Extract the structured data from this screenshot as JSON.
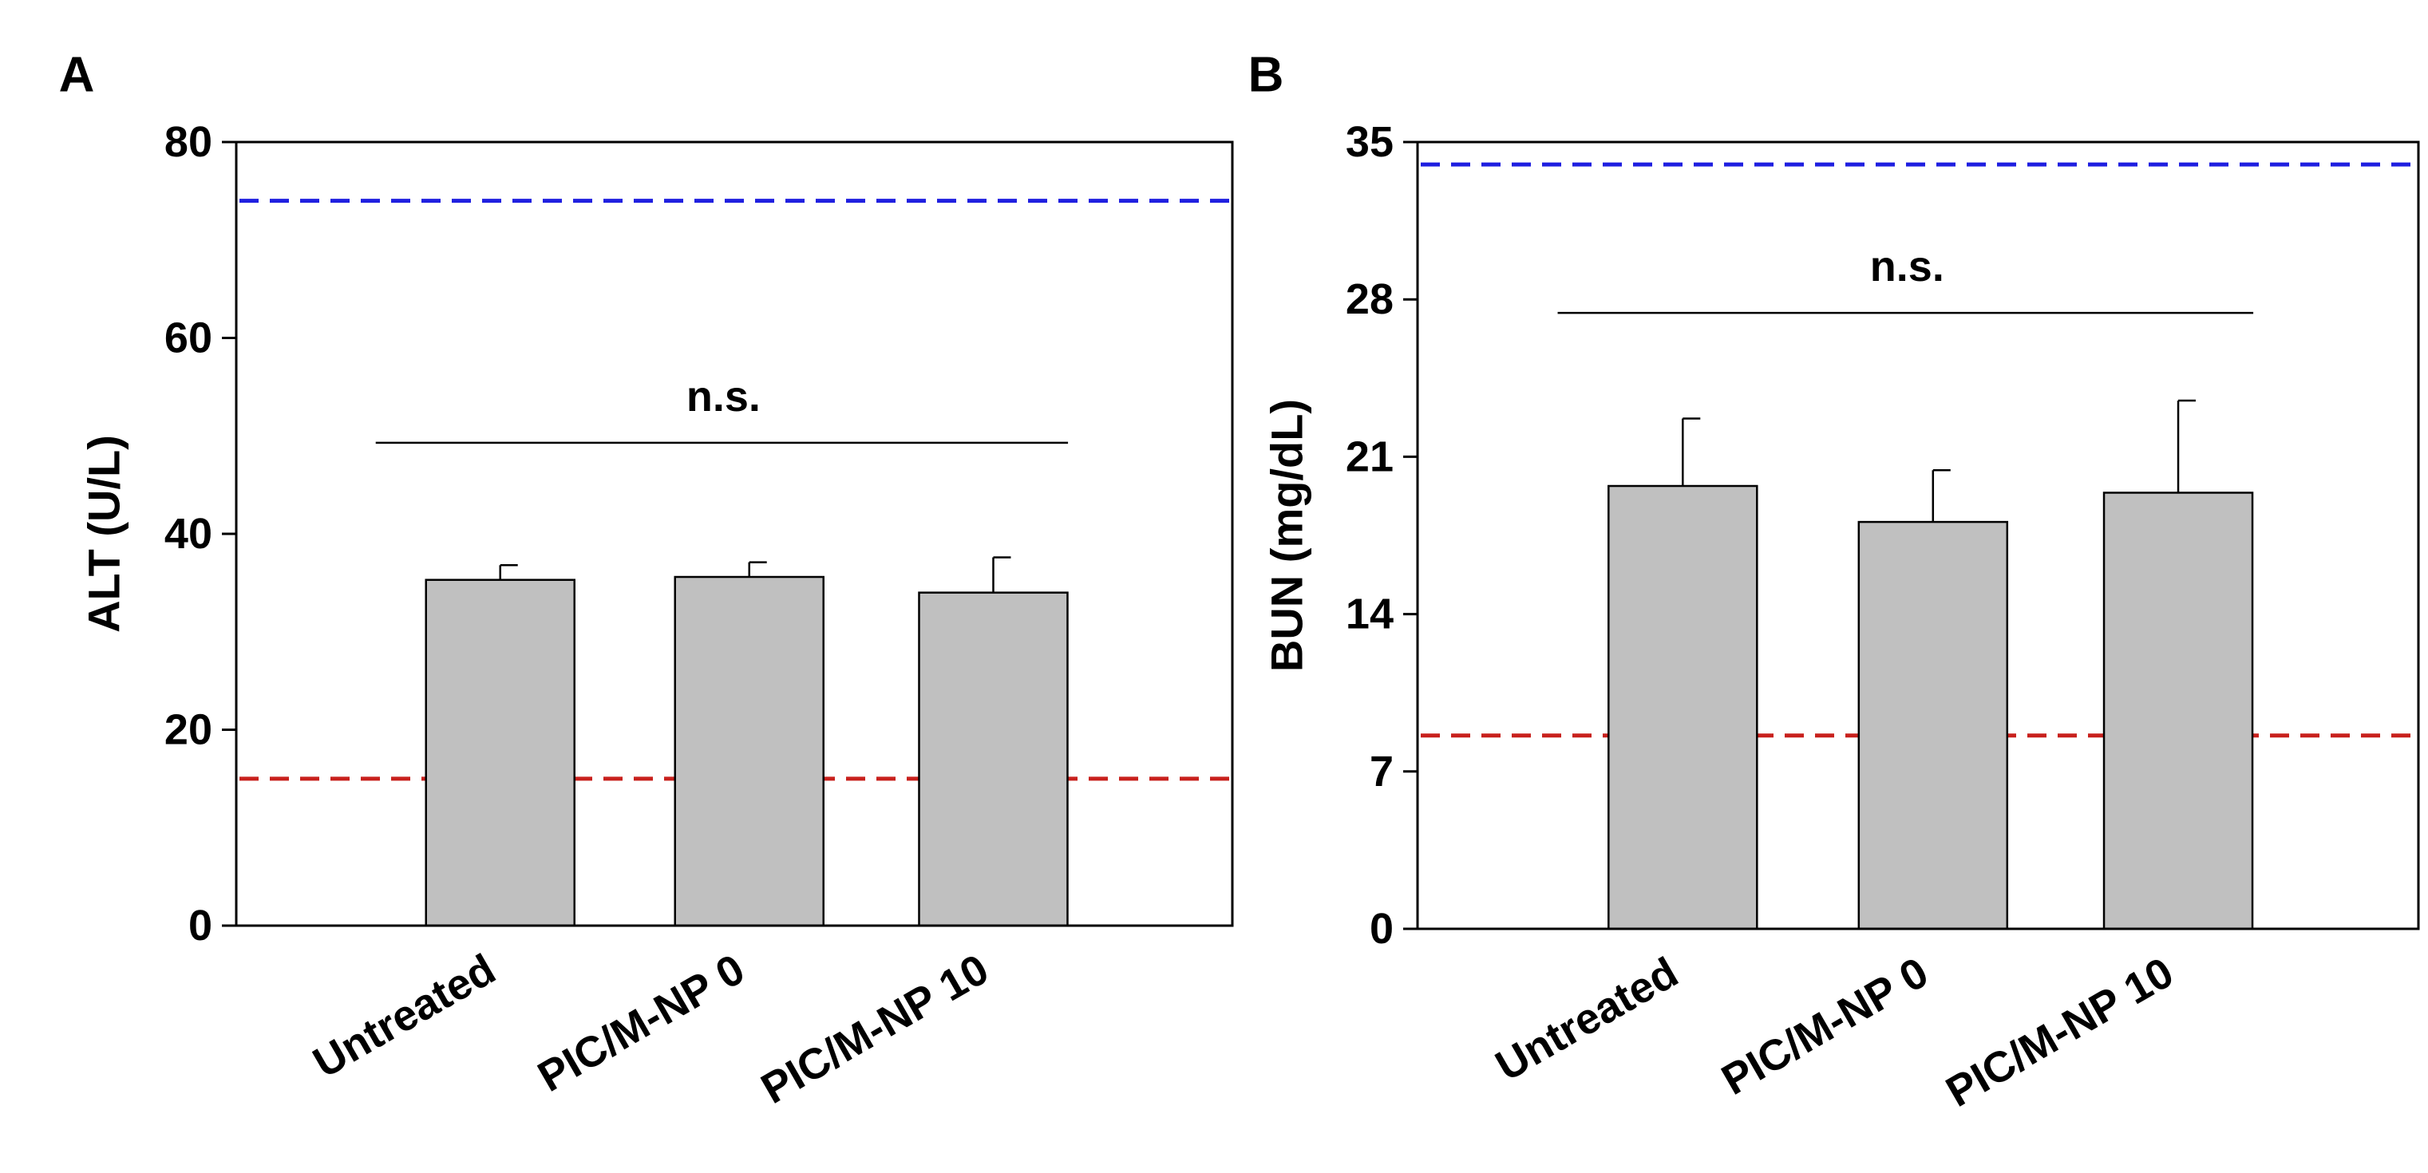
{
  "colors": {
    "bar_fill": "#c0c0c0",
    "bar_stroke": "#000000",
    "upper_ref": "#1f1fe0",
    "lower_ref": "#c8201c",
    "axis": "#000000"
  },
  "chart_data": [
    {
      "type": "bar",
      "panel_label": "A",
      "categories": [
        "Untreated",
        "PIC/M-NP 0",
        "PIC/M-NP 10"
      ],
      "values": [
        35.3,
        35.6,
        34.0
      ],
      "error": [
        1.5,
        1.5,
        3.6
      ],
      "ylabel": "ALT (U/L)",
      "xlabel": "",
      "ylim": [
        0,
        80
      ],
      "yticks": [
        0,
        20,
        40,
        60,
        80
      ],
      "reference_lines": [
        {
          "value": 74,
          "color": "#1f1fe0",
          "style": "dashed"
        },
        {
          "value": 15,
          "color": "#c8201c",
          "style": "dashed"
        }
      ],
      "significance": {
        "label": "n.s.",
        "level": 49.3
      }
    },
    {
      "type": "bar",
      "panel_label": "B",
      "categories": [
        "Untreated",
        "PIC/M-NP 0",
        "PIC/M-NP 10"
      ],
      "values": [
        19.7,
        18.1,
        19.4
      ],
      "error": [
        3.0,
        2.3,
        4.1
      ],
      "ylabel": "BUN (mg/dL)",
      "xlabel": "",
      "ylim": [
        0,
        35
      ],
      "yticks": [
        0,
        7,
        14,
        21,
        28,
        35
      ],
      "reference_lines": [
        {
          "value": 34,
          "color": "#1f1fe0",
          "style": "dashed"
        },
        {
          "value": 8.6,
          "color": "#c8201c",
          "style": "dashed"
        }
      ],
      "significance": {
        "label": "n.s.",
        "level": 27.4
      }
    }
  ]
}
